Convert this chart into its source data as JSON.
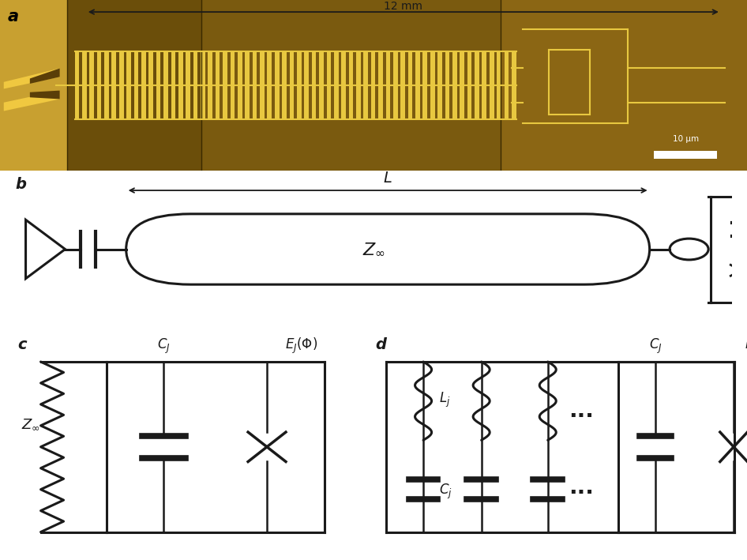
{
  "fig_width": 9.46,
  "fig_height": 7.09,
  "bg_color": "#ffffff",
  "panel_a_label": "a",
  "panel_b_label": "b",
  "panel_c_label": "c",
  "panel_d_label": "d",
  "arrow_12mm_text": "12 mm",
  "L_label": "$L$",
  "Zinf_label": "$Z_{\\infty}$",
  "Zinf_label_c": "$Z_{\\infty}$",
  "CJ_label": "$C_J$",
  "EJ_label": "$E_J(\\Phi)$",
  "Lj_label": "$L_j$",
  "Cj_label": "$C_j$",
  "Phi_label": "$\\Phi$",
  "scale_bar_label": "10 μm",
  "photo_bg": "#8B6914",
  "photo_stripe": "#E8C840",
  "lw": 1.8,
  "lw_thick": 2.2
}
